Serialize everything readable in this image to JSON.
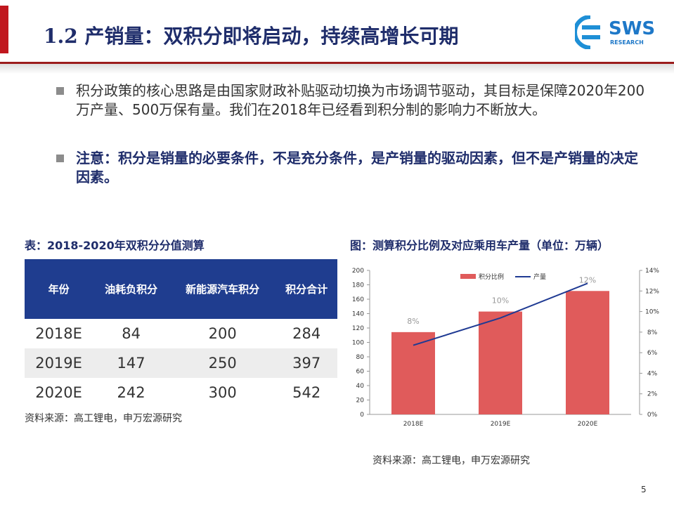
{
  "header": {
    "title": "1.2 产销量：双积分即将启动，持续高增长可期",
    "logo_text": "SWS",
    "logo_sub": "RESEARCH"
  },
  "bullets": [
    {
      "text": "积分政策的核心思路是由国家财政补贴驱动切换为市场调节驱动，其目标是保障2020年200万产量、500万保有量。我们在2018年已经看到积分制的影响力不断放大。",
      "bold": false
    },
    {
      "text": "注意：积分是销量的必要条件，不是充分条件，是产销量的驱动因素，但不是产销量的决定因素。",
      "bold": true
    }
  ],
  "table": {
    "caption": "表：2018-2020年双积分分值测算",
    "columns": [
      "年份",
      "油耗负积分",
      "新能源汽车积分",
      "积分合计"
    ],
    "rows": [
      [
        "2018E",
        84,
        200,
        284
      ],
      [
        "2019E",
        147,
        250,
        397
      ],
      [
        "2020E",
        242,
        300,
        542
      ]
    ],
    "source": "资料来源：高工锂电，申万宏源研究"
  },
  "chart_data": {
    "type": "bar_line",
    "title": "图：测算积分比例及对应乘用车产量（单位：万辆）",
    "categories": [
      "2018E",
      "2019E",
      "2020E"
    ],
    "series": [
      {
        "name": "积分比例",
        "type": "bar",
        "color": "#e05b5b",
        "axis": "y2",
        "values": [
          8,
          10,
          12
        ],
        "value_labels": [
          "8%",
          "10%",
          "12%"
        ]
      },
      {
        "name": "产量",
        "type": "line",
        "color": "#1f3a93",
        "values": [
          96,
          134,
          182
        ]
      }
    ],
    "ylim": [
      0,
      200
    ],
    "yticks": [
      0,
      20,
      40,
      60,
      80,
      100,
      120,
      140,
      160,
      180,
      200
    ],
    "y2lim": [
      0,
      14
    ],
    "y2ticks": [
      {
        "value": 0,
        "label": "0%"
      },
      {
        "value": 2,
        "label": "2%"
      },
      {
        "value": 4,
        "label": "4%"
      },
      {
        "value": 6,
        "label": "6%"
      },
      {
        "value": 8,
        "label": "8%"
      },
      {
        "value": 10,
        "label": "10%"
      },
      {
        "value": 12,
        "label": "12%"
      },
      {
        "value": 14,
        "label": "14%"
      }
    ],
    "grid": false,
    "legend": "top",
    "source": "资料来源：高工锂电，申万宏源研究"
  },
  "footer": {
    "page": "5"
  }
}
